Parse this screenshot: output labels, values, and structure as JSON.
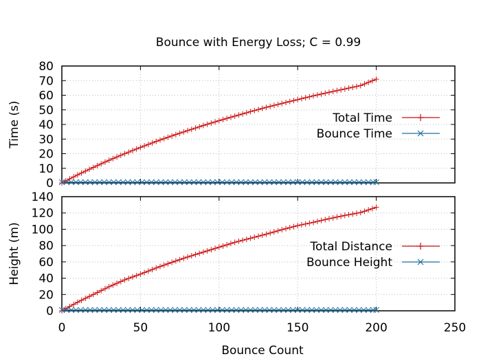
{
  "chart_data": [
    {
      "type": "line",
      "title": "Bounce with Energy Loss; C = 0.99",
      "ylabel": "Time (s)",
      "xlim": [
        0,
        250
      ],
      "ylim": [
        0,
        80
      ],
      "xticks": [
        "0",
        "50",
        "100",
        "150",
        "200",
        "250"
      ],
      "yticks": [
        "0",
        "10",
        "20",
        "30",
        "40",
        "50",
        "60",
        "70",
        "80"
      ],
      "grid": true,
      "legend_position": "right",
      "series": [
        {
          "name": "Total Time",
          "color": "#cc1111",
          "marker": "plus",
          "x": [
            0,
            10,
            20,
            30,
            40,
            50,
            60,
            70,
            80,
            90,
            100,
            110,
            120,
            130,
            140,
            150,
            160,
            170,
            180,
            190,
            200
          ],
          "y": [
            0,
            5.5,
            10.6,
            15.5,
            20.0,
            24.3,
            28.4,
            32.2,
            35.8,
            39.3,
            42.6,
            45.7,
            48.8,
            51.7,
            54.4,
            57.0,
            59.6,
            62.0,
            64.3,
            66.6,
            71.0
          ]
        },
        {
          "name": "Bounce Time",
          "color": "#1f6f9f",
          "marker": "cross",
          "x": [
            0,
            200
          ],
          "y": [
            0.5,
            0.5
          ]
        }
      ]
    },
    {
      "type": "line",
      "ylabel": "Height (m)",
      "xlabel": "Bounce Count",
      "xlim": [
        0,
        250
      ],
      "ylim": [
        0,
        140
      ],
      "xticks": [
        "0",
        "50",
        "100",
        "150",
        "200",
        "250"
      ],
      "yticks": [
        "0",
        "20",
        "40",
        "60",
        "80",
        "100",
        "120",
        "140"
      ],
      "grid": true,
      "legend_position": "right",
      "series": [
        {
          "name": "Total Distance",
          "color": "#cc1111",
          "marker": "plus",
          "x": [
            0,
            10,
            20,
            30,
            40,
            50,
            60,
            70,
            80,
            90,
            100,
            110,
            120,
            130,
            140,
            150,
            160,
            170,
            180,
            190,
            200
          ],
          "y": [
            0,
            10.5,
            20.0,
            29.5,
            38.0,
            45.0,
            52.5,
            59.5,
            66.0,
            72.0,
            78.0,
            84.0,
            89.0,
            94.0,
            99.5,
            104.5,
            108.5,
            113.0,
            117.0,
            120.5,
            127.0
          ]
        },
        {
          "name": "Bounce Height",
          "color": "#1f6f9f",
          "marker": "cross",
          "x": [
            0,
            200
          ],
          "y": [
            1,
            1
          ]
        }
      ]
    }
  ]
}
